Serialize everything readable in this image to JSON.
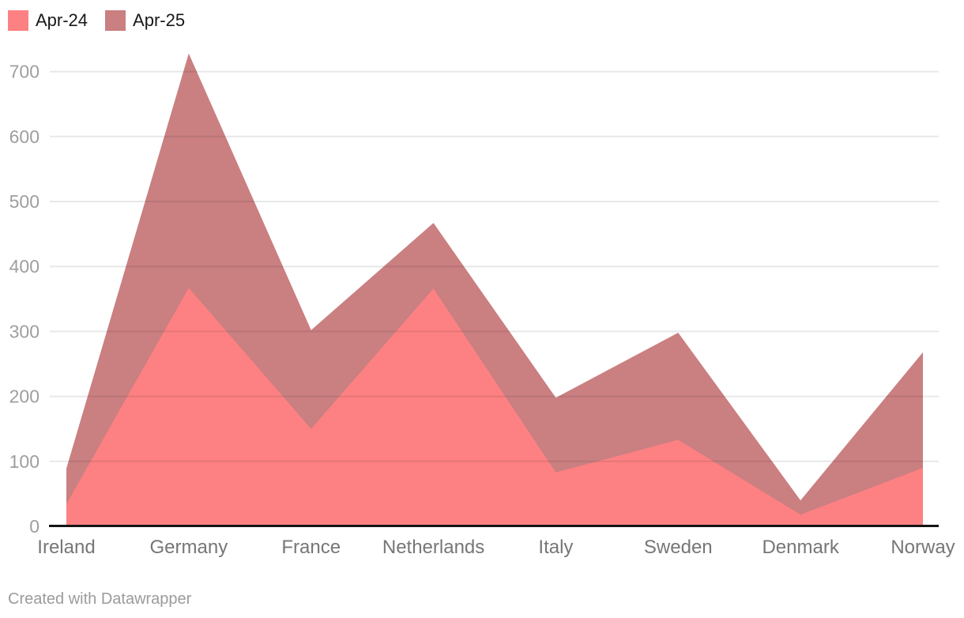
{
  "legend": {
    "items": [
      {
        "label": "Apr-24",
        "color": "#fd8182"
      },
      {
        "label": "Apr-25",
        "color": "#ca7f81"
      }
    ]
  },
  "footer": {
    "text": "Created with Datawrapper"
  },
  "chart_data": {
    "type": "area",
    "title": "",
    "xlabel": "",
    "ylabel": "",
    "categories": [
      "Ireland",
      "Germany",
      "France",
      "Netherlands",
      "Italy",
      "Sweden",
      "Denmark",
      "Norway"
    ],
    "series": [
      {
        "name": "Apr-24",
        "color": "#fd8182",
        "values": [
          34,
          367,
          150,
          366,
          83,
          133,
          18,
          90
        ]
      },
      {
        "name": "Apr-25",
        "color": "#ca7f81",
        "values": [
          89,
          728,
          302,
          467,
          198,
          298,
          40,
          268
        ]
      }
    ],
    "ylim": [
      0,
      700
    ],
    "yticks": [
      0,
      100,
      200,
      300,
      400,
      500,
      600,
      700
    ],
    "grid": true,
    "legend_position": "top-left",
    "colors": {
      "baseline": "#151515",
      "gridline": "rgba(30,30,30,0.10)",
      "ytick_label": "#9e9e9e",
      "xtick_label": "#767676"
    }
  }
}
